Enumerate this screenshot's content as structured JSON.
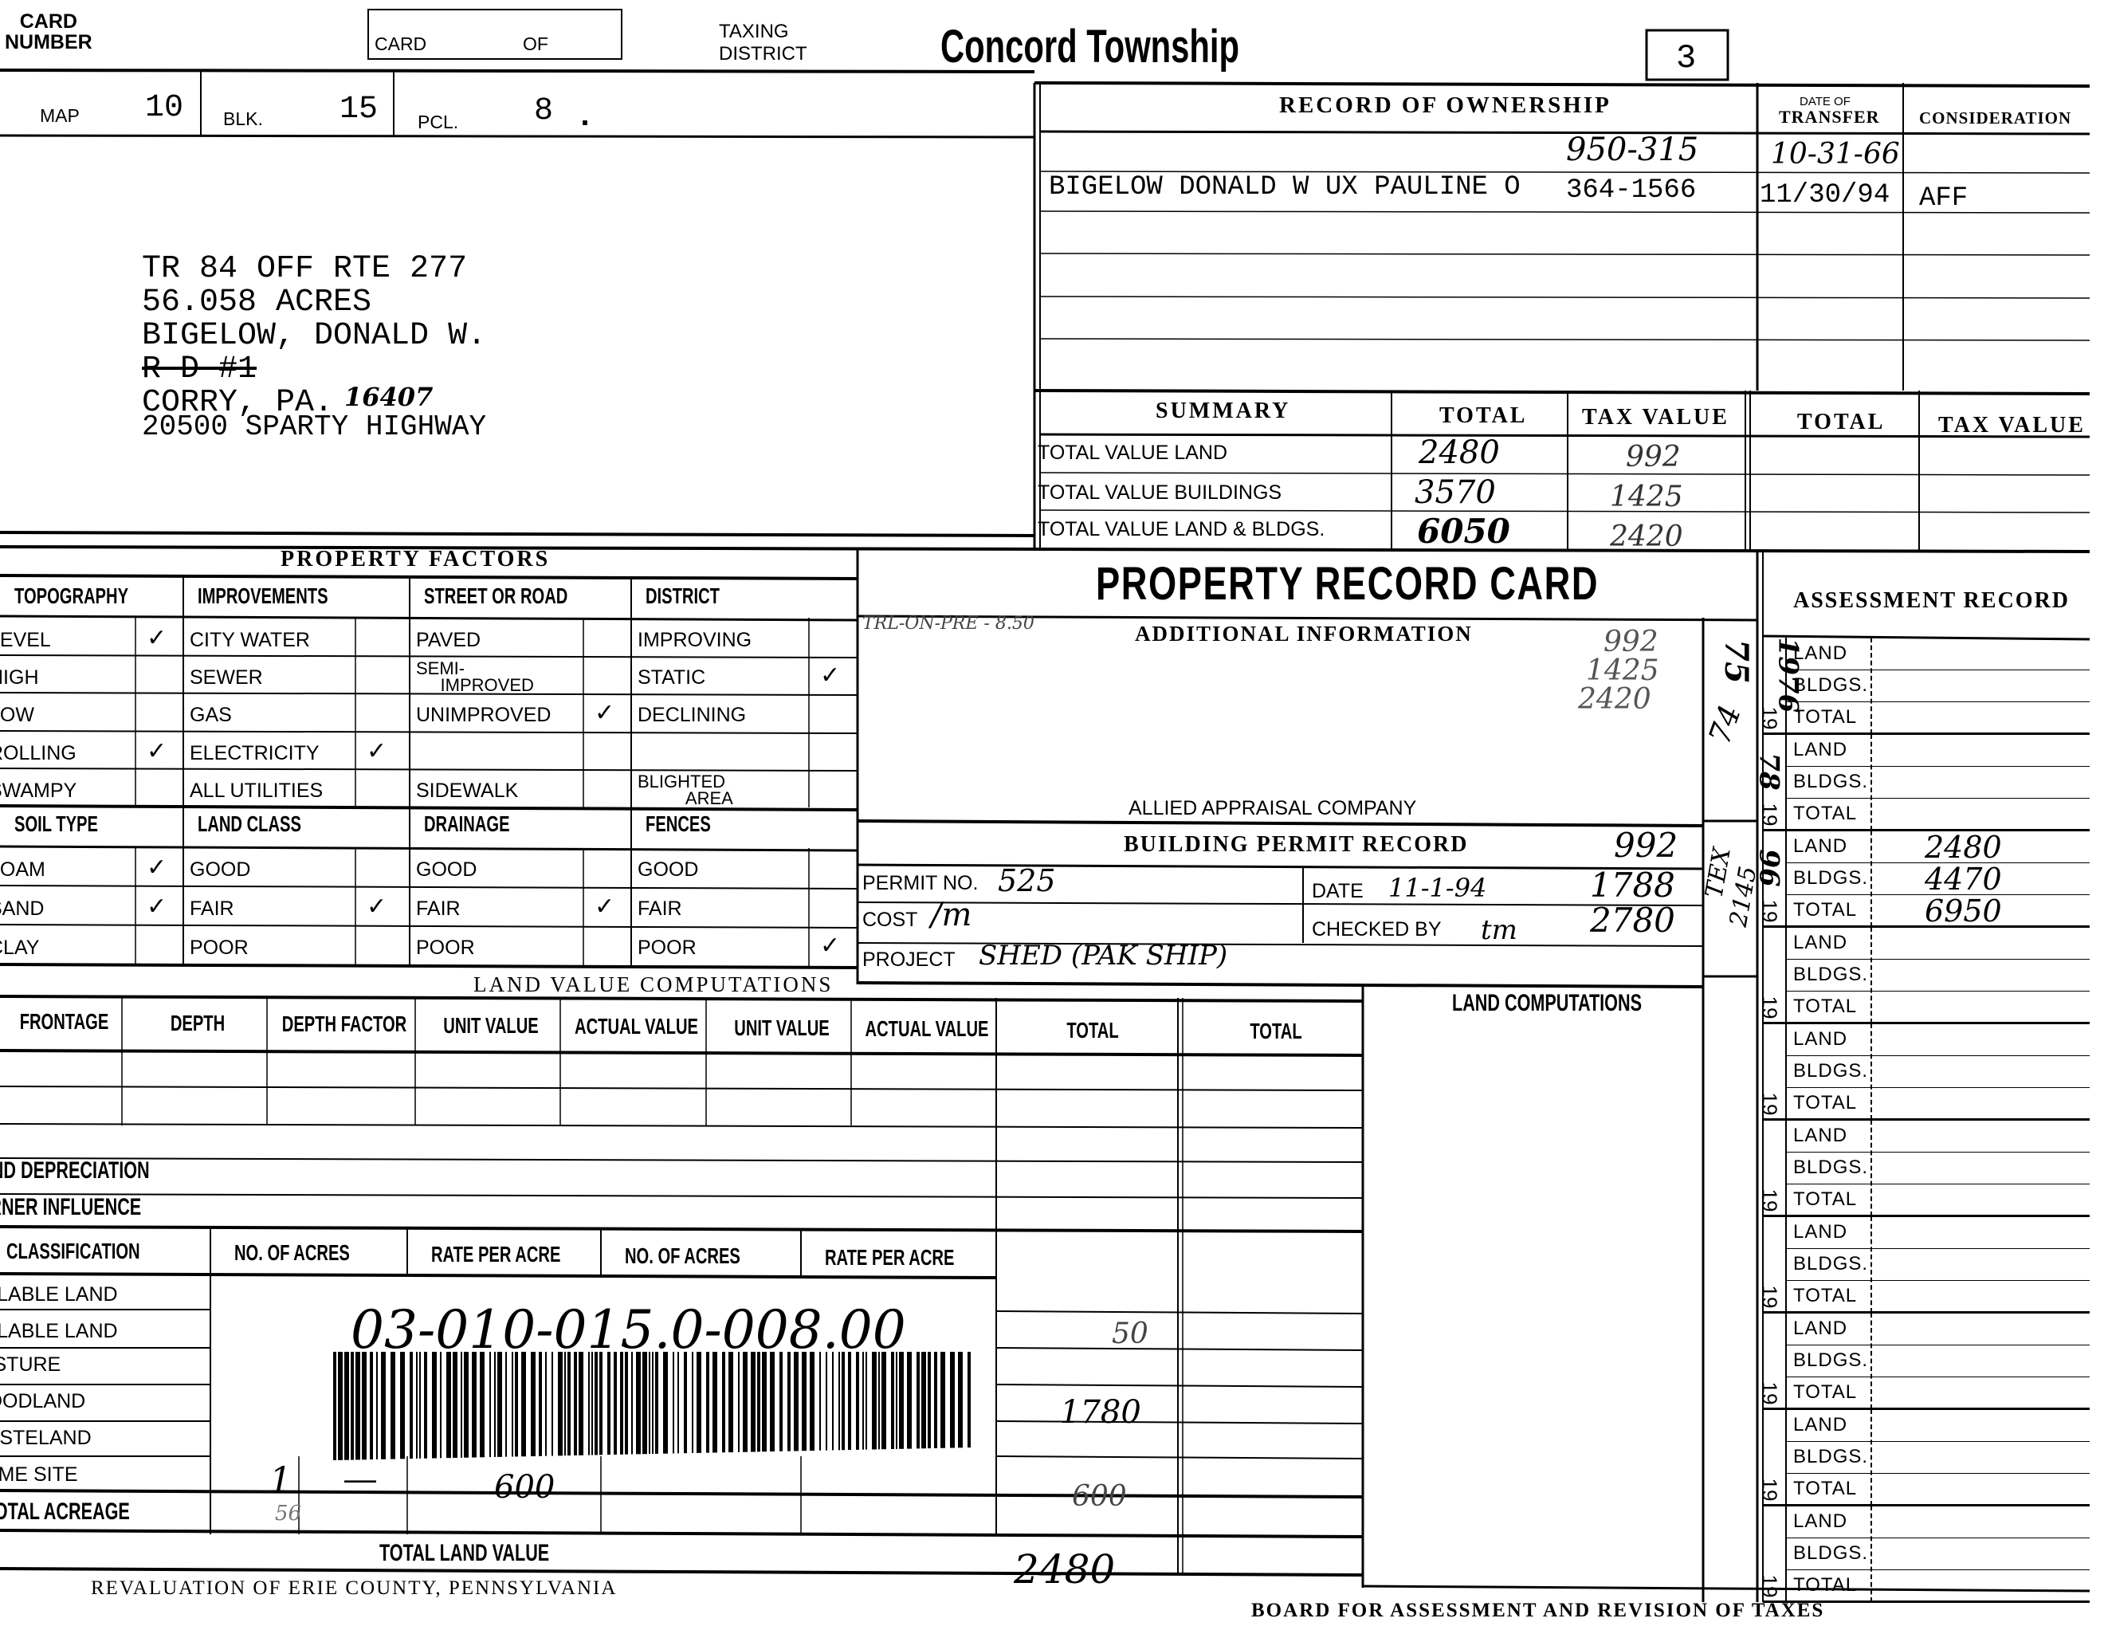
{
  "header": {
    "card_number_label": "CARD\nNUMBER",
    "card_of_label_card": "CARD",
    "card_of_label_of": "OF",
    "taxing_district_label_1": "TAXING",
    "taxing_district_label_2": "DISTRICT",
    "taxing_district": "Concord Township",
    "box_number": "3"
  },
  "parcel": {
    "map_label": "MAP",
    "map_value": "10",
    "blk_label": "BLK.",
    "blk_value": "15",
    "pcl_label": "PCL.",
    "pcl_value": "8",
    "pcl_dot": "."
  },
  "address": {
    "lines": [
      "TR 84 OFF RTE 277",
      "56.058 ACRES",
      "BIGELOW, DONALD W.",
      "R D #1",
      "CORRY, PA.",
      "20500 SPARTY HIGHWAY"
    ],
    "zip_handwritten": "16407"
  },
  "ownership": {
    "title": "RECORD  OF  OWNERSHIP",
    "date_header_small": "DATE OF",
    "date_header": "TRANSFER",
    "consideration_header": "CONSIDERATION",
    "rows": [
      {
        "owner": "",
        "deed": "950-315",
        "date": "10-31-66",
        "consideration": ""
      },
      {
        "owner": "BIGELOW DONALD W UX PAULINE O",
        "deed": "364-1566",
        "date": "11/30/94",
        "consideration": "AFF"
      }
    ]
  },
  "summary": {
    "title": "SUMMARY",
    "col_total": "TOTAL",
    "col_tax": "TAX VALUE",
    "col_total_2": "TOTAL",
    "col_tax_2": "TAX VALUE",
    "rows": [
      {
        "label": "TOTAL VALUE LAND",
        "total": "2480",
        "tax": "992"
      },
      {
        "label": "TOTAL VALUE BUILDINGS",
        "total": "3570",
        "tax": "1425"
      },
      {
        "label": "TOTAL VALUE LAND & BLDGS.",
        "total": "6050",
        "tax": "2420"
      }
    ]
  },
  "property_factors": {
    "title": "PROPERTY  FACTORS",
    "groups_top": [
      {
        "header": "TOPOGRAPHY",
        "items": [
          "LEVEL",
          "HIGH",
          "LOW",
          "ROLLING",
          "SWAMPY"
        ],
        "checked": [
          true,
          false,
          false,
          true,
          false
        ]
      },
      {
        "header": "IMPROVEMENTS",
        "items": [
          "CITY WATER",
          "SEWER",
          "GAS",
          "ELECTRICITY",
          "ALL UTILITIES"
        ],
        "checked": [
          false,
          false,
          false,
          true,
          false
        ]
      },
      {
        "header": "STREET OR ROAD",
        "items": [
          "PAVED",
          "SEMI-\n     IMPROVED",
          "UNIMPROVED",
          "",
          "SIDEWALK"
        ],
        "checked": [
          false,
          false,
          true,
          false,
          false
        ]
      },
      {
        "header": "DISTRICT",
        "items": [
          "IMPROVING",
          "STATIC",
          "DECLINING",
          "",
          "BLIGHTED\n          AREA"
        ],
        "checked": [
          false,
          true,
          false,
          false,
          false
        ]
      }
    ],
    "groups_bottom": [
      {
        "header": "SOIL TYPE",
        "items": [
          "LOAM",
          "SAND",
          "CLAY"
        ],
        "checked": [
          true,
          true,
          false
        ]
      },
      {
        "header": "LAND CLASS",
        "items": [
          "GOOD",
          "FAIR",
          "POOR"
        ],
        "checked": [
          false,
          true,
          false
        ]
      },
      {
        "header": "DRAINAGE",
        "items": [
          "GOOD",
          "FAIR",
          "POOR"
        ],
        "checked": [
          false,
          true,
          false
        ]
      },
      {
        "header": "FENCES",
        "items": [
          "GOOD",
          "FAIR",
          "POOR"
        ],
        "checked": [
          false,
          false,
          true
        ]
      }
    ]
  },
  "record_card": {
    "title": "PROPERTY RECORD CARD",
    "additional_info_title": "ADDITIONAL  INFORMATION",
    "additional_note": "TRL-ON-PRE - 8.50",
    "additional_numbers": [
      "992",
      "1425",
      "2420"
    ],
    "appraiser": "ALLIED APPRAISAL COMPANY",
    "permit_title": "BUILDING  PERMIT  RECORD",
    "permit_numbers": [
      "992",
      "1788",
      "2780"
    ],
    "permit_no_label": "PERMIT NO.",
    "permit_no": "525",
    "cost_label": "COST",
    "cost": "/m",
    "project_label": "PROJECT",
    "project": "SHED (PAK SHIP)",
    "date_label": "DATE",
    "date": "11-1-94",
    "checked_by_label": "CHECKED BY",
    "checked_by": "tm"
  },
  "land_value": {
    "title": "LAND  VALUE  COMPUTATIONS",
    "headers": [
      "FRONTAGE",
      "DEPTH",
      "DEPTH FACTOR",
      "UNIT VALUE",
      "ACTUAL VALUE",
      "UNIT VALUE",
      "ACTUAL VALUE",
      "TOTAL",
      "TOTAL"
    ],
    "depreciation_label": "LAND DEPRECIATION",
    "corner_label": "CORNER INFLUENCE",
    "class_headers": [
      "CLASSIFICATION",
      "NO. OF ACRES",
      "RATE PER ACRE",
      "NO. OF ACRES",
      "RATE PER ACRE"
    ],
    "classes": [
      "TILLABLE LAND",
      "TILLABLE LAND",
      "PASTURE",
      "WOODLAND",
      "WASTELAND",
      "HOME SITE",
      "TOTAL ACREAGE"
    ],
    "home_site_acres": "1",
    "home_site_dash": "—",
    "home_site_rate": "600",
    "total_acreage": "56",
    "totals_column": [
      "50",
      "1780",
      "600"
    ],
    "total_land_value_label": "TOTAL LAND VALUE",
    "total_land_value": "2480",
    "parcel_id": "03-010-015.0-008.00"
  },
  "land_computations": {
    "title": "LAND COMPUTATIONS"
  },
  "assessment": {
    "title": "ASSESSMENT   RECORD",
    "row_labels": [
      "LAND",
      "BLDGS.",
      "TOTAL"
    ],
    "year_prefix": "19",
    "blocks": [
      {
        "year": "1976",
        "values": [
          "",
          "",
          ""
        ]
      },
      {
        "year": "78",
        "values": [
          "",
          "",
          ""
        ]
      },
      {
        "year": "96",
        "values": [
          "2480",
          "4470",
          "6950"
        ]
      },
      {
        "year": "",
        "values": [
          "",
          "",
          ""
        ]
      },
      {
        "year": "",
        "values": [
          "",
          "",
          ""
        ]
      },
      {
        "year": "",
        "values": [
          "",
          "",
          ""
        ]
      },
      {
        "year": "",
        "values": [
          "",
          "",
          ""
        ]
      },
      {
        "year": "",
        "values": [
          "",
          "",
          ""
        ]
      },
      {
        "year": "",
        "values": [
          "",
          "",
          ""
        ]
      },
      {
        "year": "",
        "values": [
          "",
          "",
          ""
        ]
      }
    ],
    "margin_notes": [
      "75",
      "74",
      "TEX",
      "2145"
    ]
  },
  "footer": {
    "left": "REVALUATION OF ERIE COUNTY, PENNSYLVANIA",
    "right": "BOARD FOR ASSESSMENT AND REVISION OF TAXES"
  }
}
